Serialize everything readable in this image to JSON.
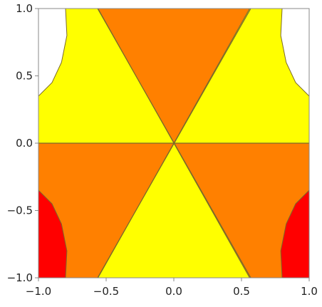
{
  "chart_data": {
    "type": "contour",
    "title": "",
    "xlabel": "",
    "ylabel": "",
    "xlim": [
      -1.0,
      1.0
    ],
    "ylim": [
      -1.0,
      1.0
    ],
    "grid": false,
    "legend": "none",
    "x_ticks": [
      -1.0,
      -0.5,
      0.0,
      0.5,
      1.0
    ],
    "x_tick_labels": [
      "−1.0",
      "−0.5",
      "0.0",
      "0.5",
      "1.0"
    ],
    "y_ticks": [
      1.0,
      0.5,
      0.0,
      -0.5,
      -1.0
    ],
    "y_tick_labels": [
      "1.0",
      "0.5",
      "0.0",
      "−0.5",
      "−1.0"
    ],
    "colors": {
      "white_region": "#ffffff",
      "yellow_region": "#ffff00",
      "orange_region": "#ff8000",
      "red_region": "#ff0000",
      "contour_line": "#7a6a2a"
    },
    "regions": [
      {
        "color": "orange",
        "points": [
          [
            -0.56,
            1.0
          ],
          [
            0.56,
            1.0
          ],
          [
            0.0,
            0.0
          ]
        ]
      },
      {
        "color": "orange",
        "points": [
          [
            -1.0,
            0.0
          ],
          [
            0.0,
            0.0
          ],
          [
            -0.56,
            -1.0
          ],
          [
            -1.0,
            -1.0
          ]
        ]
      },
      {
        "color": "orange",
        "points": [
          [
            1.0,
            0.0
          ],
          [
            0.0,
            0.0
          ],
          [
            0.56,
            -1.0
          ],
          [
            1.0,
            -1.0
          ]
        ]
      },
      {
        "color": "white",
        "points": [
          [
            -1.0,
            1.0
          ],
          [
            -0.8,
            1.0
          ],
          [
            -0.79,
            0.8
          ],
          [
            -0.83,
            0.6
          ],
          [
            -0.9,
            0.45
          ],
          [
            -1.0,
            0.35
          ]
        ]
      },
      {
        "color": "white",
        "points": [
          [
            1.0,
            1.0
          ],
          [
            0.8,
            1.0
          ],
          [
            0.79,
            0.8
          ],
          [
            0.83,
            0.6
          ],
          [
            0.9,
            0.45
          ],
          [
            1.0,
            0.35
          ]
        ]
      },
      {
        "color": "red",
        "points": [
          [
            -1.0,
            -1.0
          ],
          [
            -0.8,
            -1.0
          ],
          [
            -0.79,
            -0.8
          ],
          [
            -0.83,
            -0.6
          ],
          [
            -0.9,
            -0.45
          ],
          [
            -1.0,
            -0.35
          ]
        ]
      },
      {
        "color": "red",
        "points": [
          [
            1.0,
            -1.0
          ],
          [
            0.8,
            -1.0
          ],
          [
            0.79,
            -0.8
          ],
          [
            0.83,
            -0.6
          ],
          [
            0.9,
            -0.45
          ],
          [
            1.0,
            -0.35
          ]
        ]
      }
    ]
  }
}
